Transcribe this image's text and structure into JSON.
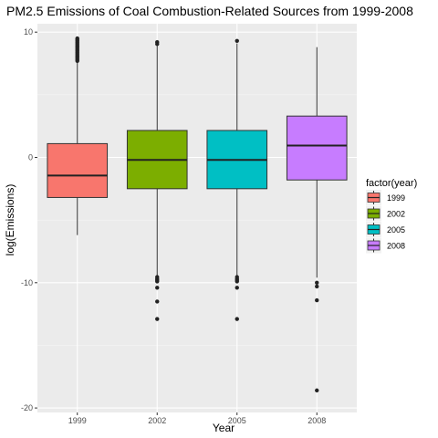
{
  "chart_data": {
    "type": "boxplot",
    "title": "PM2.5 Emissions of Coal Combustion-Related Sources from 1999-2008",
    "xlabel": "Year",
    "ylabel": "log(Emissions)",
    "categories": [
      "1999",
      "2002",
      "2005",
      "2008"
    ],
    "ylim": [
      -20,
      10.5
    ],
    "yticks": [
      10,
      0,
      -10,
      -20
    ],
    "grid": true,
    "legend": {
      "title": "factor(year)",
      "placement": "right",
      "entries": [
        "1999",
        "2002",
        "2005",
        "2008"
      ]
    },
    "series": [
      {
        "name": "1999",
        "color": "#F8766D",
        "min": -6.2,
        "q1": -3.2,
        "median": -1.45,
        "q3": 1.1,
        "max": 7.6,
        "outliers": [
          7.7,
          7.8,
          7.9,
          8.0,
          8.1,
          8.2,
          8.3,
          8.4,
          8.5,
          8.6,
          8.7,
          8.8,
          8.9,
          9.0,
          9.1,
          9.2,
          9.3,
          9.4,
          9.5
        ]
      },
      {
        "name": "2002",
        "color": "#7CAE00",
        "min": -9.4,
        "q1": -2.5,
        "median": -0.2,
        "q3": 2.15,
        "max": 8.9,
        "outliers": [
          9.05,
          9.2,
          -9.55,
          -9.7,
          -9.8,
          -9.9,
          -10.4,
          -11.5,
          -12.9
        ]
      },
      {
        "name": "2005",
        "color": "#00BFC4",
        "min": -9.4,
        "q1": -2.5,
        "median": -0.2,
        "q3": 2.15,
        "max": 9.1,
        "outliers": [
          9.3,
          -9.55,
          -9.7,
          -9.8,
          -9.9,
          -10.4,
          -12.9
        ]
      },
      {
        "name": "2008",
        "color": "#C77CFF",
        "min": -9.6,
        "q1": -1.8,
        "median": 0.95,
        "q3": 3.3,
        "max": 8.8,
        "outliers": [
          -10.0,
          -10.3,
          -11.4,
          -18.6
        ]
      }
    ]
  }
}
